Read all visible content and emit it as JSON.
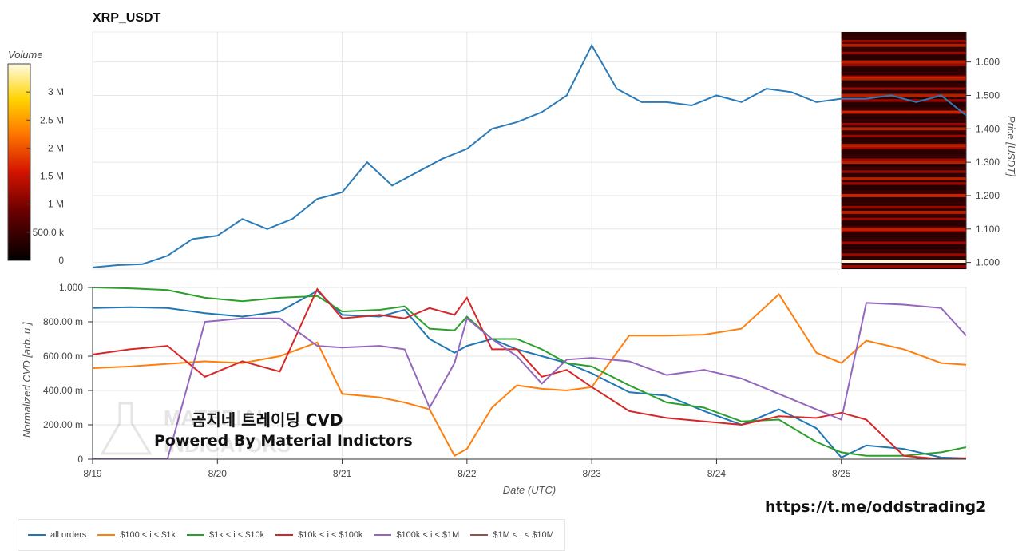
{
  "title": "XRP_USDT",
  "colorbar": {
    "label": "Volume",
    "ticks": [
      "3 M",
      "2.5 M",
      "2 M",
      "1.5 M",
      "1 M",
      "500.0 k",
      "0"
    ],
    "tick_values": [
      3000000,
      2500000,
      2000000,
      1500000,
      1000000,
      500000,
      0
    ],
    "max": 3500000
  },
  "watermark": {
    "logo_text_1": "MATERIAL",
    "logo_text_2": "INDICATORS",
    "title": "곰지네 트레이딩 CVD",
    "subtitle": "Powered By Material Indictors"
  },
  "telegram_link": "https://t.me/oddstrading2",
  "chart_data": [
    {
      "type": "line",
      "panel": "price",
      "ylabel": "Price [USDT]",
      "ylim": [
        0.98,
        1.69
      ],
      "yticks": [
        1.0,
        1.1,
        1.2,
        1.3,
        1.4,
        1.5,
        1.6
      ],
      "ytick_labels": [
        "1.000",
        "1.100",
        "1.200",
        "1.300",
        "1.400",
        "1.500",
        "1.600"
      ],
      "y_axis_side": "right",
      "grid": true,
      "x": [
        0,
        0.2,
        0.4,
        0.6,
        0.8,
        1.0,
        1.2,
        1.4,
        1.6,
        1.8,
        2.0,
        2.2,
        2.4,
        2.6,
        2.8,
        3.0,
        3.2,
        3.4,
        3.6,
        3.8,
        4.0,
        4.2,
        4.4,
        4.6,
        4.8,
        5.0,
        5.2,
        5.4,
        5.6,
        5.8,
        6.0,
        6.2,
        6.4,
        6.6,
        6.8,
        7.0
      ],
      "values": [
        0.985,
        0.992,
        0.995,
        1.02,
        1.07,
        1.08,
        1.13,
        1.1,
        1.13,
        1.19,
        1.21,
        1.3,
        1.23,
        1.27,
        1.31,
        1.34,
        1.4,
        1.42,
        1.45,
        1.5,
        1.65,
        1.52,
        1.48,
        1.48,
        1.47,
        1.5,
        1.48,
        1.52,
        1.51,
        1.48,
        1.49,
        1.49,
        1.5,
        1.48,
        1.5,
        1.44
      ],
      "heatmap": {
        "x_start": 6.0,
        "x_end": 7.0,
        "rows": 60,
        "description_levels": [
          1.1,
          1.15,
          1.2,
          1.25,
          1.3,
          1.35,
          1.4,
          1.45,
          1.5,
          1.55,
          1.6,
          1.65
        ]
      }
    },
    {
      "type": "line",
      "panel": "cvd",
      "xlabel": "Date (UTC)",
      "ylabel": "Normalized CVD [arb. u.]",
      "ylim": [
        0,
        1000
      ],
      "yticks": [
        0,
        200,
        400,
        600,
        800,
        1000
      ],
      "ytick_labels": [
        "0",
        "200.00 m",
        "400.00 m",
        "600.00 m",
        "800.00 m",
        "1.000"
      ],
      "categories": [
        "8/19",
        "8/20",
        "8/21",
        "8/22",
        "8/23",
        "8/24",
        "8/25"
      ],
      "category_x": [
        0,
        1,
        2,
        3,
        4,
        5,
        6
      ],
      "x_max": 7.0,
      "grid": true,
      "legend_position": "bottom",
      "series": [
        {
          "name": "all orders",
          "color": "#1f77b4",
          "x": [
            0,
            0.3,
            0.6,
            0.9,
            1.2,
            1.5,
            1.8,
            2.0,
            2.3,
            2.5,
            2.7,
            2.9,
            3.0,
            3.2,
            3.4,
            3.6,
            3.8,
            4.0,
            4.3,
            4.6,
            4.9,
            5.2,
            5.5,
            5.8,
            6.0,
            6.2,
            6.5,
            6.8,
            7.0
          ],
          "values": [
            880,
            885,
            880,
            850,
            830,
            860,
            980,
            840,
            830,
            870,
            700,
            620,
            660,
            700,
            640,
            600,
            560,
            500,
            390,
            370,
            280,
            200,
            290,
            180,
            10,
            80,
            60,
            10,
            5
          ]
        },
        {
          "name": "$100 < i < $1k",
          "color": "#ff7f0e",
          "x": [
            0,
            0.3,
            0.6,
            0.9,
            1.2,
            1.5,
            1.8,
            2.0,
            2.3,
            2.5,
            2.7,
            2.9,
            3.0,
            3.2,
            3.4,
            3.6,
            3.8,
            4.0,
            4.3,
            4.6,
            4.9,
            5.2,
            5.5,
            5.8,
            6.0,
            6.2,
            6.5,
            6.8,
            7.0
          ],
          "values": [
            530,
            540,
            555,
            570,
            560,
            600,
            680,
            380,
            360,
            330,
            290,
            20,
            60,
            300,
            430,
            410,
            400,
            420,
            720,
            720,
            725,
            760,
            960,
            620,
            560,
            690,
            640,
            560,
            550
          ]
        },
        {
          "name": "$1k < i < $10k",
          "color": "#2ca02c",
          "x": [
            0,
            0.3,
            0.6,
            0.9,
            1.2,
            1.5,
            1.8,
            2.0,
            2.3,
            2.5,
            2.7,
            2.9,
            3.0,
            3.2,
            3.4,
            3.6,
            3.8,
            4.0,
            4.3,
            4.6,
            4.9,
            5.2,
            5.5,
            5.8,
            6.0,
            6.2,
            6.5,
            6.8,
            7.0
          ],
          "values": [
            1000,
            995,
            985,
            940,
            920,
            940,
            950,
            860,
            870,
            890,
            760,
            750,
            830,
            700,
            700,
            640,
            560,
            540,
            430,
            330,
            300,
            220,
            230,
            100,
            40,
            20,
            20,
            40,
            70
          ]
        },
        {
          "name": "$10k < i < $100k",
          "color": "#d62728",
          "x": [
            0,
            0.3,
            0.6,
            0.9,
            1.2,
            1.5,
            1.8,
            2.0,
            2.3,
            2.5,
            2.7,
            2.9,
            3.0,
            3.2,
            3.4,
            3.6,
            3.8,
            4.0,
            4.3,
            4.6,
            4.9,
            5.2,
            5.5,
            5.8,
            6.0,
            6.2,
            6.5,
            6.8,
            7.0
          ],
          "values": [
            610,
            640,
            660,
            480,
            570,
            510,
            990,
            820,
            840,
            820,
            880,
            840,
            940,
            640,
            640,
            480,
            520,
            420,
            280,
            240,
            220,
            200,
            250,
            240,
            270,
            230,
            20,
            0,
            5
          ]
        },
        {
          "name": "$100k < i < $1M",
          "color": "#9467bd",
          "x": [
            0,
            0.3,
            0.6,
            0.9,
            1.2,
            1.5,
            1.8,
            2.0,
            2.3,
            2.5,
            2.7,
            2.9,
            3.0,
            3.2,
            3.4,
            3.6,
            3.8,
            4.0,
            4.3,
            4.6,
            4.9,
            5.2,
            5.5,
            5.8,
            6.0,
            6.2,
            6.5,
            6.8,
            7.0
          ],
          "values": [
            0,
            0,
            0,
            800,
            820,
            820,
            660,
            650,
            660,
            640,
            300,
            560,
            820,
            700,
            600,
            440,
            580,
            590,
            570,
            490,
            520,
            470,
            380,
            290,
            230,
            910,
            900,
            880,
            720
          ]
        },
        {
          "name": "$1M < i < $10M",
          "color": "#8c564b",
          "x": [
            6.6,
            7.0
          ],
          "values": [
            0,
            0
          ]
        }
      ]
    }
  ]
}
